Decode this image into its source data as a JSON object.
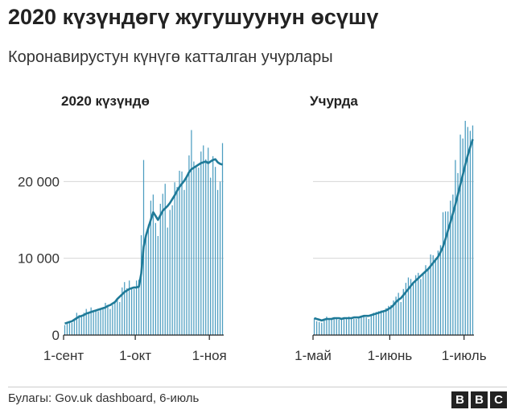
{
  "title": "2020 күзүндөгү жугушуунун өсүшү",
  "subtitle": "Коронавирустун күнүгө катталган учурлары",
  "source": "Булагы: Gov.uk dashboard, 6-июль",
  "logo": [
    "B",
    "B",
    "C"
  ],
  "colors": {
    "bar": "#4c9dc0",
    "line": "#1f7a98",
    "grid": "#d7d7d7",
    "axis": "#222222"
  },
  "chart_data": [
    {
      "type": "bar",
      "title": "2020 күзүндө",
      "x_range": [
        "2020-09-01",
        "2020-11-06"
      ],
      "ylim": [
        0,
        30000
      ],
      "yticks": [
        {
          "value": 0,
          "label": "0"
        },
        {
          "value": 10000,
          "label": "10 000"
        },
        {
          "value": 20000,
          "label": "20 000"
        }
      ],
      "xticks": [
        {
          "value": "2020-09-01",
          "label": "1-сент"
        },
        {
          "value": "2020-10-01",
          "label": "1-окт"
        },
        {
          "value": "2020-11-01",
          "label": "1-ноя"
        }
      ],
      "series": [
        {
          "kind": "bars",
          "values": [
            1300,
            1500,
            1700,
            1600,
            1900,
            2900,
            2600,
            2500,
            2900,
            3400,
            3000,
            3600,
            3000,
            3100,
            3100,
            3400,
            3600,
            4200,
            3800,
            3400,
            3900,
            4400,
            4800,
            4300,
            6200,
            6900,
            6100,
            7100,
            6000,
            6000,
            7100,
            7200,
            13000,
            22800,
            12900,
            14400,
            17500,
            18300,
            14600,
            12900,
            17100,
            18400,
            19700,
            14000,
            16300,
            16900,
            19900,
            19300,
            21400,
            21300,
            18900,
            20800,
            23400,
            26700,
            22600,
            21900,
            21800,
            23900,
            24700,
            22900,
            24400,
            20500,
            23300,
            21900,
            18900,
            20000,
            25000
          ]
        },
        {
          "kind": "line",
          "values": [
            1500,
            1600,
            1700,
            1800,
            2000,
            2200,
            2400,
            2500,
            2600,
            2800,
            2900,
            3000,
            3100,
            3200,
            3300,
            3400,
            3500,
            3600,
            3800,
            3900,
            4100,
            4300,
            4700,
            5000,
            5300,
            5600,
            5800,
            6000,
            6100,
            6200,
            6200,
            6300,
            8000,
            11500,
            13000,
            14000,
            15000,
            16000,
            15500,
            15000,
            15600,
            16200,
            16500,
            16800,
            17200,
            17700,
            18200,
            18800,
            19300,
            19700,
            20100,
            20600,
            21200,
            21600,
            21800,
            22000,
            22200,
            22400,
            22500,
            22600,
            22400,
            22600,
            22800,
            22900,
            22500,
            22300,
            22200
          ]
        }
      ]
    },
    {
      "type": "bar",
      "title": "Учурда",
      "x_range": [
        "2021-05-01",
        "2021-07-05"
      ],
      "ylim": [
        0,
        30000
      ],
      "yticks": [
        {
          "value": 0,
          "label": "0"
        },
        {
          "value": 10000,
          "label": "10 000"
        },
        {
          "value": 20000,
          "label": "20 000"
        }
      ],
      "xticks": [
        {
          "value": "2021-05-01",
          "label": "1-май"
        },
        {
          "value": "2021-06-01",
          "label": "1-июнь"
        },
        {
          "value": "2021-07-01",
          "label": "1-июль"
        }
      ],
      "series": [
        {
          "kind": "bars",
          "values": [
            2200,
            1800,
            1700,
            1600,
            2100,
            2400,
            2000,
            2200,
            2300,
            2300,
            2000,
            2000,
            2100,
            2200,
            2400,
            2200,
            2100,
            2100,
            2300,
            2500,
            2600,
            2300,
            2100,
            2700,
            2900,
            3000,
            3100,
            3200,
            3100,
            3500,
            3800,
            3900,
            4500,
            5000,
            5500,
            4300,
            6000,
            6800,
            7500,
            7300,
            6900,
            7800,
            8100,
            7300,
            8100,
            9100,
            8600,
            10500,
            10400,
            10000,
            11000,
            11700,
            16000,
            16100,
            16100,
            17500,
            18300,
            22800,
            21100,
            26100,
            25600,
            27900,
            27100,
            26600,
            27300
          ]
        },
        {
          "kind": "line",
          "values": [
            2200,
            2100,
            2000,
            1900,
            2000,
            2100,
            2100,
            2100,
            2200,
            2200,
            2200,
            2100,
            2200,
            2200,
            2200,
            2200,
            2300,
            2300,
            2300,
            2400,
            2500,
            2500,
            2500,
            2600,
            2700,
            2800,
            2900,
            3000,
            3100,
            3200,
            3400,
            3600,
            3900,
            4300,
            4600,
            4800,
            5200,
            5600,
            6000,
            6400,
            6800,
            7100,
            7400,
            7700,
            8000,
            8300,
            8600,
            9000,
            9400,
            9800,
            10200,
            10800,
            11500,
            12500,
            13600,
            14700,
            15800,
            17000,
            18300,
            19600,
            20900,
            22200,
            23400,
            24500,
            25500
          ]
        }
      ]
    }
  ]
}
